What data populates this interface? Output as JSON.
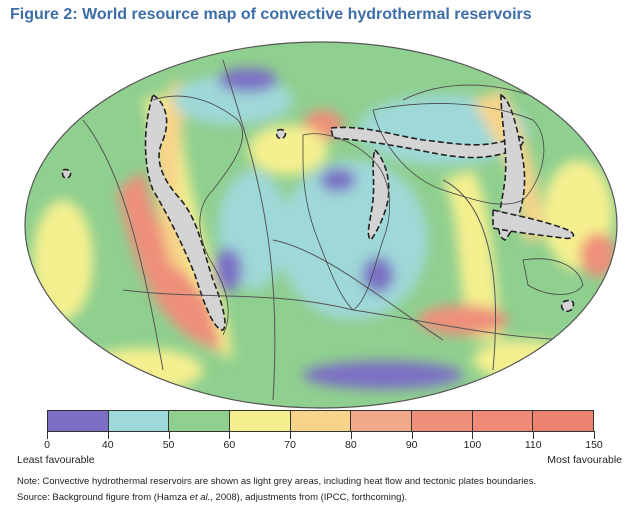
{
  "title": "Figure 2: World resource map of convective hydrothermal reservoirs",
  "legend": {
    "ticks": [
      "0",
      "40",
      "50",
      "60",
      "70",
      "80",
      "90",
      "100",
      "110",
      "150"
    ],
    "colors": [
      "#7b6fc4",
      "#9fd8d8",
      "#8fcf8f",
      "#f5f08f",
      "#f7d48a",
      "#f2a98a",
      "#ee8f7a",
      "#ee8a77",
      "#ec8270"
    ],
    "low_label": "Least favourable",
    "high_label": "Most favourable"
  },
  "note": "Note: Convective hydrothermal reservoirs are shown as light grey areas, including heat flow and tectonic plates boundaries.",
  "source": {
    "prefix": "Source: Background figure from (Hamza ",
    "italic": "et al.",
    "suffix": ", 2008), adjustments from (IPCC, forthcoming)."
  },
  "map": {
    "ocean_color": "#8fcf8f",
    "reservoir_color": "#d4d4d4"
  }
}
